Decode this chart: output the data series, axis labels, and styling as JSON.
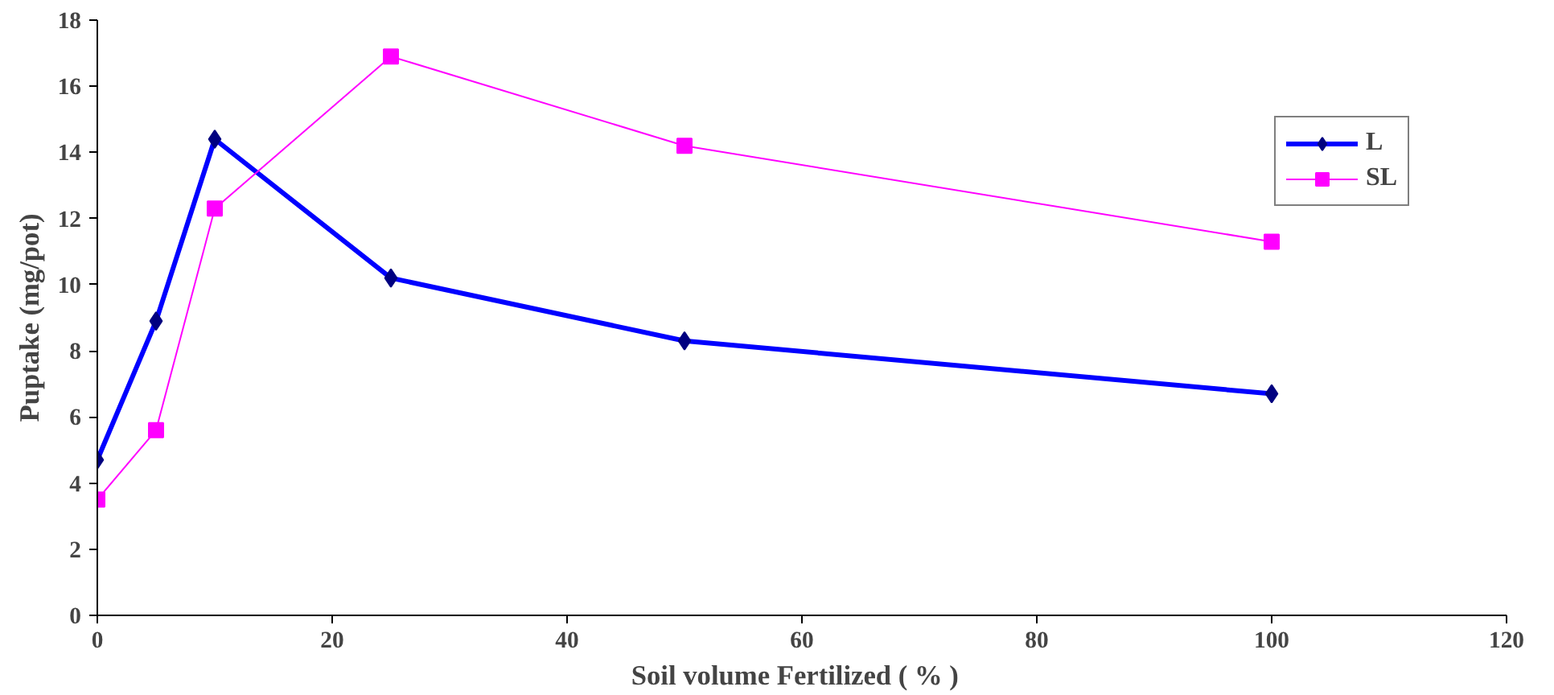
{
  "chart_data": {
    "type": "line",
    "xlabel": "Soil volume Fertilized   ( % )",
    "ylabel": "Puptake (mg/pot)",
    "x": [
      0,
      5,
      10,
      25,
      50,
      100
    ],
    "series": [
      {
        "name": "L",
        "color": "#0000ff",
        "marker": "diamond",
        "values": [
          4.7,
          8.9,
          14.4,
          10.2,
          8.3,
          6.7
        ]
      },
      {
        "name": "SL",
        "color": "#ff00ff",
        "marker": "square",
        "values": [
          3.5,
          5.6,
          12.3,
          16.9,
          14.2,
          11.3
        ]
      }
    ],
    "xlim": [
      0,
      120
    ],
    "xticks": [
      0,
      20,
      40,
      60,
      80,
      100,
      120
    ],
    "ylim": [
      0,
      18
    ],
    "yticks": [
      0,
      2,
      4,
      6,
      8,
      10,
      12,
      14,
      16,
      18
    ],
    "grid": false,
    "legend": "top right"
  }
}
